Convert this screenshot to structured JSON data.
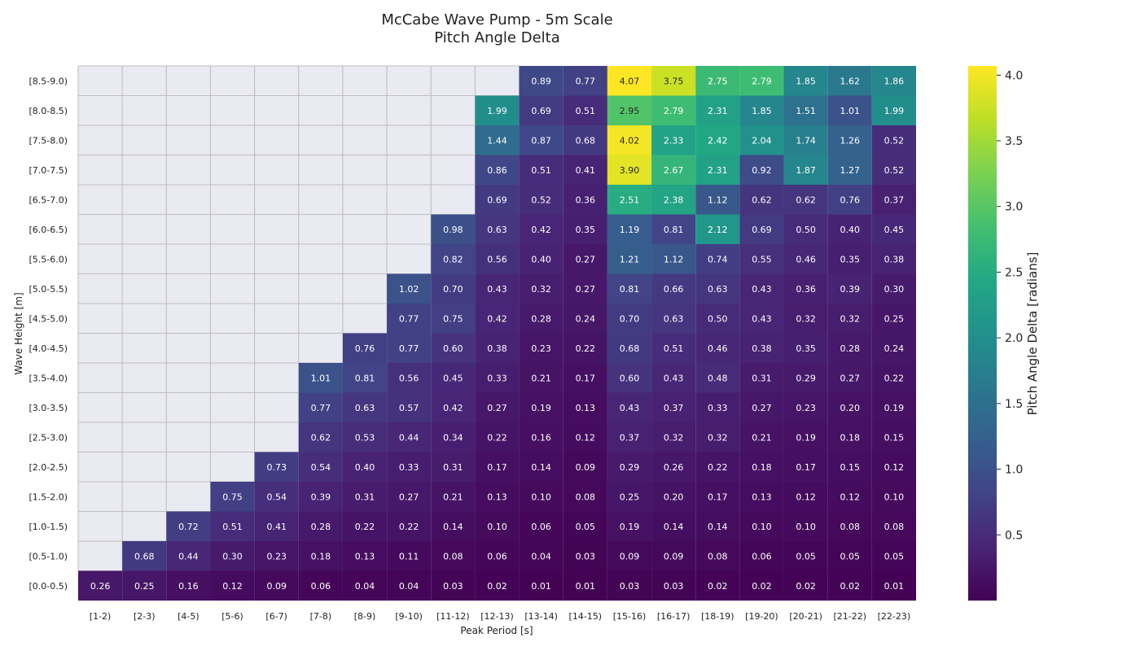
{
  "chart_data": {
    "type": "heatmap",
    "title": "McCabe Wave Pump - 5m Scale",
    "subtitle": "Pitch Angle Delta",
    "xlabel": "Peak Period [s]",
    "ylabel": "Wave Height [m]",
    "x_categories": [
      "[1-2)",
      "[2-3)",
      "[4-5)",
      "[5-6)",
      "[6-7)",
      "[7-8)",
      "[8-9)",
      "[9-10)",
      "[11-12)",
      "[12-13)",
      "[13-14)",
      "[14-15)",
      "[15-16)",
      "[16-17)",
      "[18-19)",
      "[19-20)",
      "[20-21)",
      "[21-22)",
      "[22-23)"
    ],
    "y_categories": [
      "[8.5-9.0)",
      "[8.0-8.5)",
      "[7.5-8.0)",
      "[7.0-7.5)",
      "[6.5-7.0)",
      "[6.0-6.5)",
      "[5.5-6.0)",
      "[5.0-5.5)",
      "[4.5-5.0)",
      "[4.0-4.5)",
      "[3.5-4.0)",
      "[3.0-3.5)",
      "[2.5-3.0)",
      "[2.0-2.5)",
      "[1.5-2.0)",
      "[1.0-1.5)",
      "[0.5-1.0)",
      "[0.0-0.5)"
    ],
    "values": [
      [
        null,
        null,
        null,
        null,
        null,
        null,
        null,
        null,
        null,
        null,
        0.89,
        0.77,
        4.07,
        3.75,
        2.75,
        2.79,
        1.85,
        1.62,
        1.86
      ],
      [
        null,
        null,
        null,
        null,
        null,
        null,
        null,
        null,
        null,
        1.99,
        0.69,
        0.51,
        2.95,
        2.79,
        2.31,
        1.85,
        1.51,
        1.01,
        1.99
      ],
      [
        null,
        null,
        null,
        null,
        null,
        null,
        null,
        null,
        null,
        1.44,
        0.87,
        0.68,
        4.02,
        2.33,
        2.42,
        2.04,
        1.74,
        1.26,
        0.52
      ],
      [
        null,
        null,
        null,
        null,
        null,
        null,
        null,
        null,
        null,
        0.86,
        0.51,
        0.41,
        3.9,
        2.67,
        2.31,
        0.92,
        1.87,
        1.27,
        0.52
      ],
      [
        null,
        null,
        null,
        null,
        null,
        null,
        null,
        null,
        null,
        0.69,
        0.52,
        0.36,
        2.51,
        2.38,
        1.12,
        0.62,
        0.62,
        0.76,
        0.37
      ],
      [
        null,
        null,
        null,
        null,
        null,
        null,
        null,
        null,
        0.98,
        0.63,
        0.42,
        0.35,
        1.19,
        0.81,
        2.12,
        0.69,
        0.5,
        0.4,
        0.45
      ],
      [
        null,
        null,
        null,
        null,
        null,
        null,
        null,
        null,
        0.82,
        0.56,
        0.4,
        0.27,
        1.21,
        1.12,
        0.74,
        0.55,
        0.46,
        0.35,
        0.38
      ],
      [
        null,
        null,
        null,
        null,
        null,
        null,
        null,
        1.02,
        0.7,
        0.43,
        0.32,
        0.27,
        0.81,
        0.66,
        0.63,
        0.43,
        0.36,
        0.39,
        0.3
      ],
      [
        null,
        null,
        null,
        null,
        null,
        null,
        null,
        0.77,
        0.75,
        0.42,
        0.28,
        0.24,
        0.7,
        0.63,
        0.5,
        0.43,
        0.32,
        0.32,
        0.25
      ],
      [
        null,
        null,
        null,
        null,
        null,
        null,
        0.76,
        0.77,
        0.6,
        0.38,
        0.23,
        0.22,
        0.68,
        0.51,
        0.46,
        0.38,
        0.35,
        0.28,
        0.24
      ],
      [
        null,
        null,
        null,
        null,
        null,
        1.01,
        0.81,
        0.56,
        0.45,
        0.33,
        0.21,
        0.17,
        0.6,
        0.43,
        0.48,
        0.31,
        0.29,
        0.27,
        0.22
      ],
      [
        null,
        null,
        null,
        null,
        null,
        0.77,
        0.63,
        0.57,
        0.42,
        0.27,
        0.19,
        0.13,
        0.43,
        0.37,
        0.33,
        0.27,
        0.23,
        0.2,
        0.19
      ],
      [
        null,
        null,
        null,
        null,
        null,
        0.62,
        0.53,
        0.44,
        0.34,
        0.22,
        0.16,
        0.12,
        0.37,
        0.32,
        0.32,
        0.21,
        0.19,
        0.18,
        0.15
      ],
      [
        null,
        null,
        null,
        null,
        0.73,
        0.54,
        0.4,
        0.33,
        0.31,
        0.17,
        0.14,
        0.09,
        0.29,
        0.26,
        0.22,
        0.18,
        0.17,
        0.15,
        0.12
      ],
      [
        null,
        null,
        null,
        0.75,
        0.54,
        0.39,
        0.31,
        0.27,
        0.21,
        0.13,
        0.1,
        0.08,
        0.25,
        0.2,
        0.17,
        0.13,
        0.12,
        0.12,
        0.1
      ],
      [
        null,
        null,
        0.72,
        0.51,
        0.41,
        0.28,
        0.22,
        0.22,
        0.14,
        0.1,
        0.06,
        0.05,
        0.19,
        0.14,
        0.14,
        0.1,
        0.1,
        0.08,
        0.08
      ],
      [
        null,
        0.68,
        0.44,
        0.3,
        0.23,
        0.18,
        0.13,
        0.11,
        0.08,
        0.06,
        0.04,
        0.03,
        0.09,
        0.09,
        0.08,
        0.06,
        0.05,
        0.05,
        0.05
      ],
      [
        0.26,
        0.25,
        0.16,
        0.12,
        0.09,
        0.06,
        0.04,
        0.04,
        0.03,
        0.02,
        0.01,
        0.01,
        0.03,
        0.03,
        0.02,
        0.02,
        0.02,
        0.02,
        0.01
      ]
    ],
    "colorbar": {
      "label": "Pitch Angle Delta [radians]",
      "ticks": [
        0.5,
        1.0,
        1.5,
        2.0,
        2.5,
        3.0,
        3.5,
        4.0
      ],
      "vmin": 0.0,
      "vmax": 4.07,
      "colormap": "viridis"
    },
    "missing_color": "#eaeaf2",
    "grid_color": "#bfbfbf"
  }
}
